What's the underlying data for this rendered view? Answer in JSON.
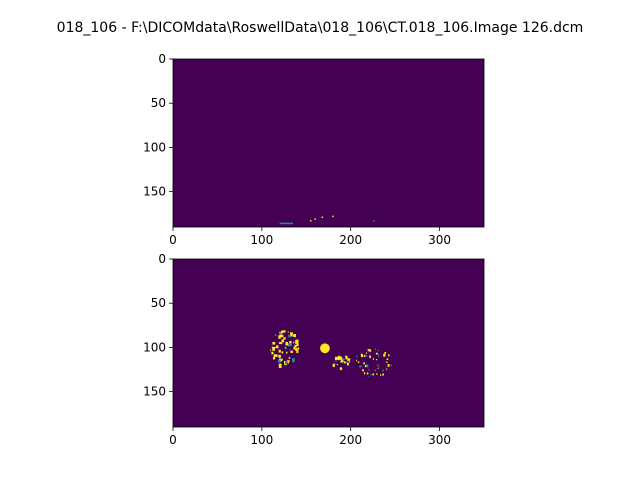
{
  "figure": {
    "title": "018_106 - F:\\DICOMdata\\RoswellData\\018_106\\CT.018_106.Image 126.dcm"
  },
  "colors": {
    "background": "#440154",
    "foreground": "#fde725",
    "mid": "#21918c",
    "frame": "#000000"
  },
  "chart_data": [
    {
      "type": "heatmap",
      "colormap": "viridis",
      "xlim": [
        0,
        350
      ],
      "ylim": [
        190,
        0
      ],
      "x_ticks": [
        0,
        100,
        200,
        300
      ],
      "y_ticks": [
        0,
        50,
        100,
        150
      ],
      "x_tick_labels": [
        "0",
        "100",
        "200",
        "300"
      ],
      "y_tick_labels": [
        "0",
        "50",
        "100",
        "150"
      ],
      "features": [
        {
          "kind": "hline",
          "x": [
            120,
            135
          ],
          "y": 186,
          "color": "#21918c"
        },
        {
          "kind": "dot",
          "x": 155,
          "y": 183,
          "color": "#fde725"
        },
        {
          "kind": "dot",
          "x": 160,
          "y": 181,
          "color": "#fde725"
        },
        {
          "kind": "dot",
          "x": 168,
          "y": 179,
          "color": "#fde725"
        },
        {
          "kind": "dot",
          "x": 180,
          "y": 178,
          "color": "#fde725"
        },
        {
          "kind": "dot",
          "x": 226,
          "y": 183,
          "color": "#21918c"
        }
      ]
    },
    {
      "type": "heatmap",
      "colormap": "viridis",
      "xlim": [
        0,
        350
      ],
      "ylim": [
        190,
        0
      ],
      "x_ticks": [
        0,
        100,
        200,
        300
      ],
      "y_ticks": [
        0,
        50,
        100,
        150
      ],
      "x_tick_labels": [
        "0",
        "100",
        "200",
        "300"
      ],
      "y_tick_labels": [
        "0",
        "50",
        "100",
        "150"
      ],
      "clusters": [
        {
          "cx": 125,
          "cy": 100,
          "rx": 16,
          "ry": 20,
          "count": 70,
          "size": 1.6
        },
        {
          "cx": 188,
          "cy": 115,
          "rx": 10,
          "ry": 8,
          "count": 22,
          "size": 1.4
        },
        {
          "cx": 225,
          "cy": 117,
          "rx": 22,
          "ry": 16,
          "count": 50,
          "size": 1.2
        }
      ],
      "blobs": [
        {
          "x": 171,
          "y": 101,
          "r": 5.5
        },
        {
          "x": 187,
          "y": 112,
          "r": 2.5
        }
      ]
    }
  ]
}
